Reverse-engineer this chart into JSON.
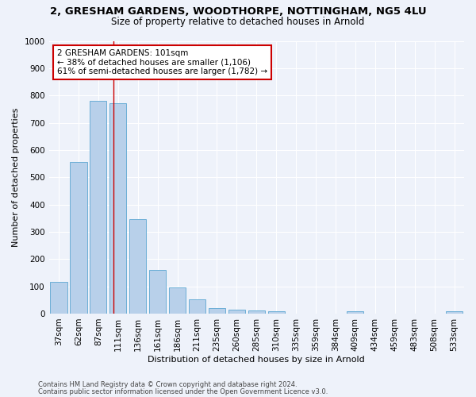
{
  "title_line1": "2, GRESHAM GARDENS, WOODTHORPE, NOTTINGHAM, NG5 4LU",
  "title_line2": "Size of property relative to detached houses in Arnold",
  "xlabel": "Distribution of detached houses by size in Arnold",
  "ylabel": "Number of detached properties",
  "categories": [
    "37sqm",
    "62sqm",
    "87sqm",
    "111sqm",
    "136sqm",
    "161sqm",
    "186sqm",
    "211sqm",
    "235sqm",
    "260sqm",
    "285sqm",
    "310sqm",
    "335sqm",
    "359sqm",
    "384sqm",
    "409sqm",
    "434sqm",
    "459sqm",
    "483sqm",
    "508sqm",
    "533sqm"
  ],
  "values": [
    115,
    555,
    780,
    770,
    345,
    160,
    97,
    53,
    20,
    13,
    12,
    8,
    0,
    0,
    0,
    10,
    0,
    0,
    0,
    0,
    10
  ],
  "bar_color": "#b8d0ea",
  "bar_edge_color": "#6baed6",
  "vline_x": 2.75,
  "vline_color": "#cc0000",
  "annotation_text": "2 GRESHAM GARDENS: 101sqm\n← 38% of detached houses are smaller (1,106)\n61% of semi-detached houses are larger (1,782) →",
  "annotation_box_color": "#ffffff",
  "annotation_border_color": "#cc0000",
  "ylim": [
    0,
    1000
  ],
  "yticks": [
    0,
    100,
    200,
    300,
    400,
    500,
    600,
    700,
    800,
    900,
    1000
  ],
  "footer_line1": "Contains HM Land Registry data © Crown copyright and database right 2024.",
  "footer_line2": "Contains public sector information licensed under the Open Government Licence v3.0.",
  "bg_color": "#eef2fa",
  "plot_bg_color": "#eef2fa",
  "title_fontsize": 9.5,
  "subtitle_fontsize": 8.5,
  "ylabel_fontsize": 8.0,
  "xlabel_fontsize": 8.0,
  "tick_fontsize": 7.5,
  "footer_fontsize": 6.0
}
